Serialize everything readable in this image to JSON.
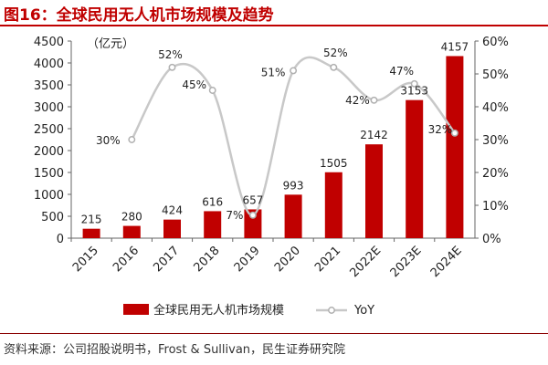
{
  "figure_title": "图16：全球民用无人机市场规模及趋势",
  "source": "资料来源：公司招股说明书，Frost & Sullivan，民生证券研究院",
  "colors": {
    "bar": "#c00000",
    "line": "#c8c8c8",
    "title": "#c00000"
  },
  "chart_data": {
    "type": "bar",
    "title": "",
    "xlabel": "",
    "ylabel": "（亿元）",
    "ylim": [
      0,
      4500
    ],
    "y_ticks": [
      "0",
      "500",
      "1000",
      "1500",
      "2000",
      "2500",
      "3000",
      "3500",
      "4000",
      "4500"
    ],
    "y2lim": [
      0,
      60
    ],
    "y2_ticks": [
      "0%",
      "10%",
      "20%",
      "30%",
      "40%",
      "50%",
      "60%"
    ],
    "categories": [
      "2015",
      "2016",
      "2017",
      "2018",
      "2019",
      "2020",
      "2021",
      "2022E",
      "2023E",
      "2024E"
    ],
    "series": [
      {
        "name": "全球民用无人机市场规模",
        "type": "bar",
        "axis": "left",
        "values": [
          215,
          280,
          424,
          616,
          657,
          993,
          1505,
          2142,
          3153,
          4157
        ],
        "labels": [
          "215",
          "280",
          "424",
          "616",
          "657",
          "993",
          "1505",
          "2142",
          "3153",
          "4157"
        ]
      },
      {
        "name": "YoY",
        "type": "line",
        "axis": "right",
        "values": [
          null,
          30,
          52,
          45,
          7,
          51,
          52,
          42,
          47,
          32
        ],
        "labels": [
          "",
          "30%",
          "52%",
          "45%",
          "7%",
          "51%",
          "52%",
          "42%",
          "47%",
          "32%"
        ]
      }
    ],
    "grid": false,
    "legend_position": "bottom"
  }
}
